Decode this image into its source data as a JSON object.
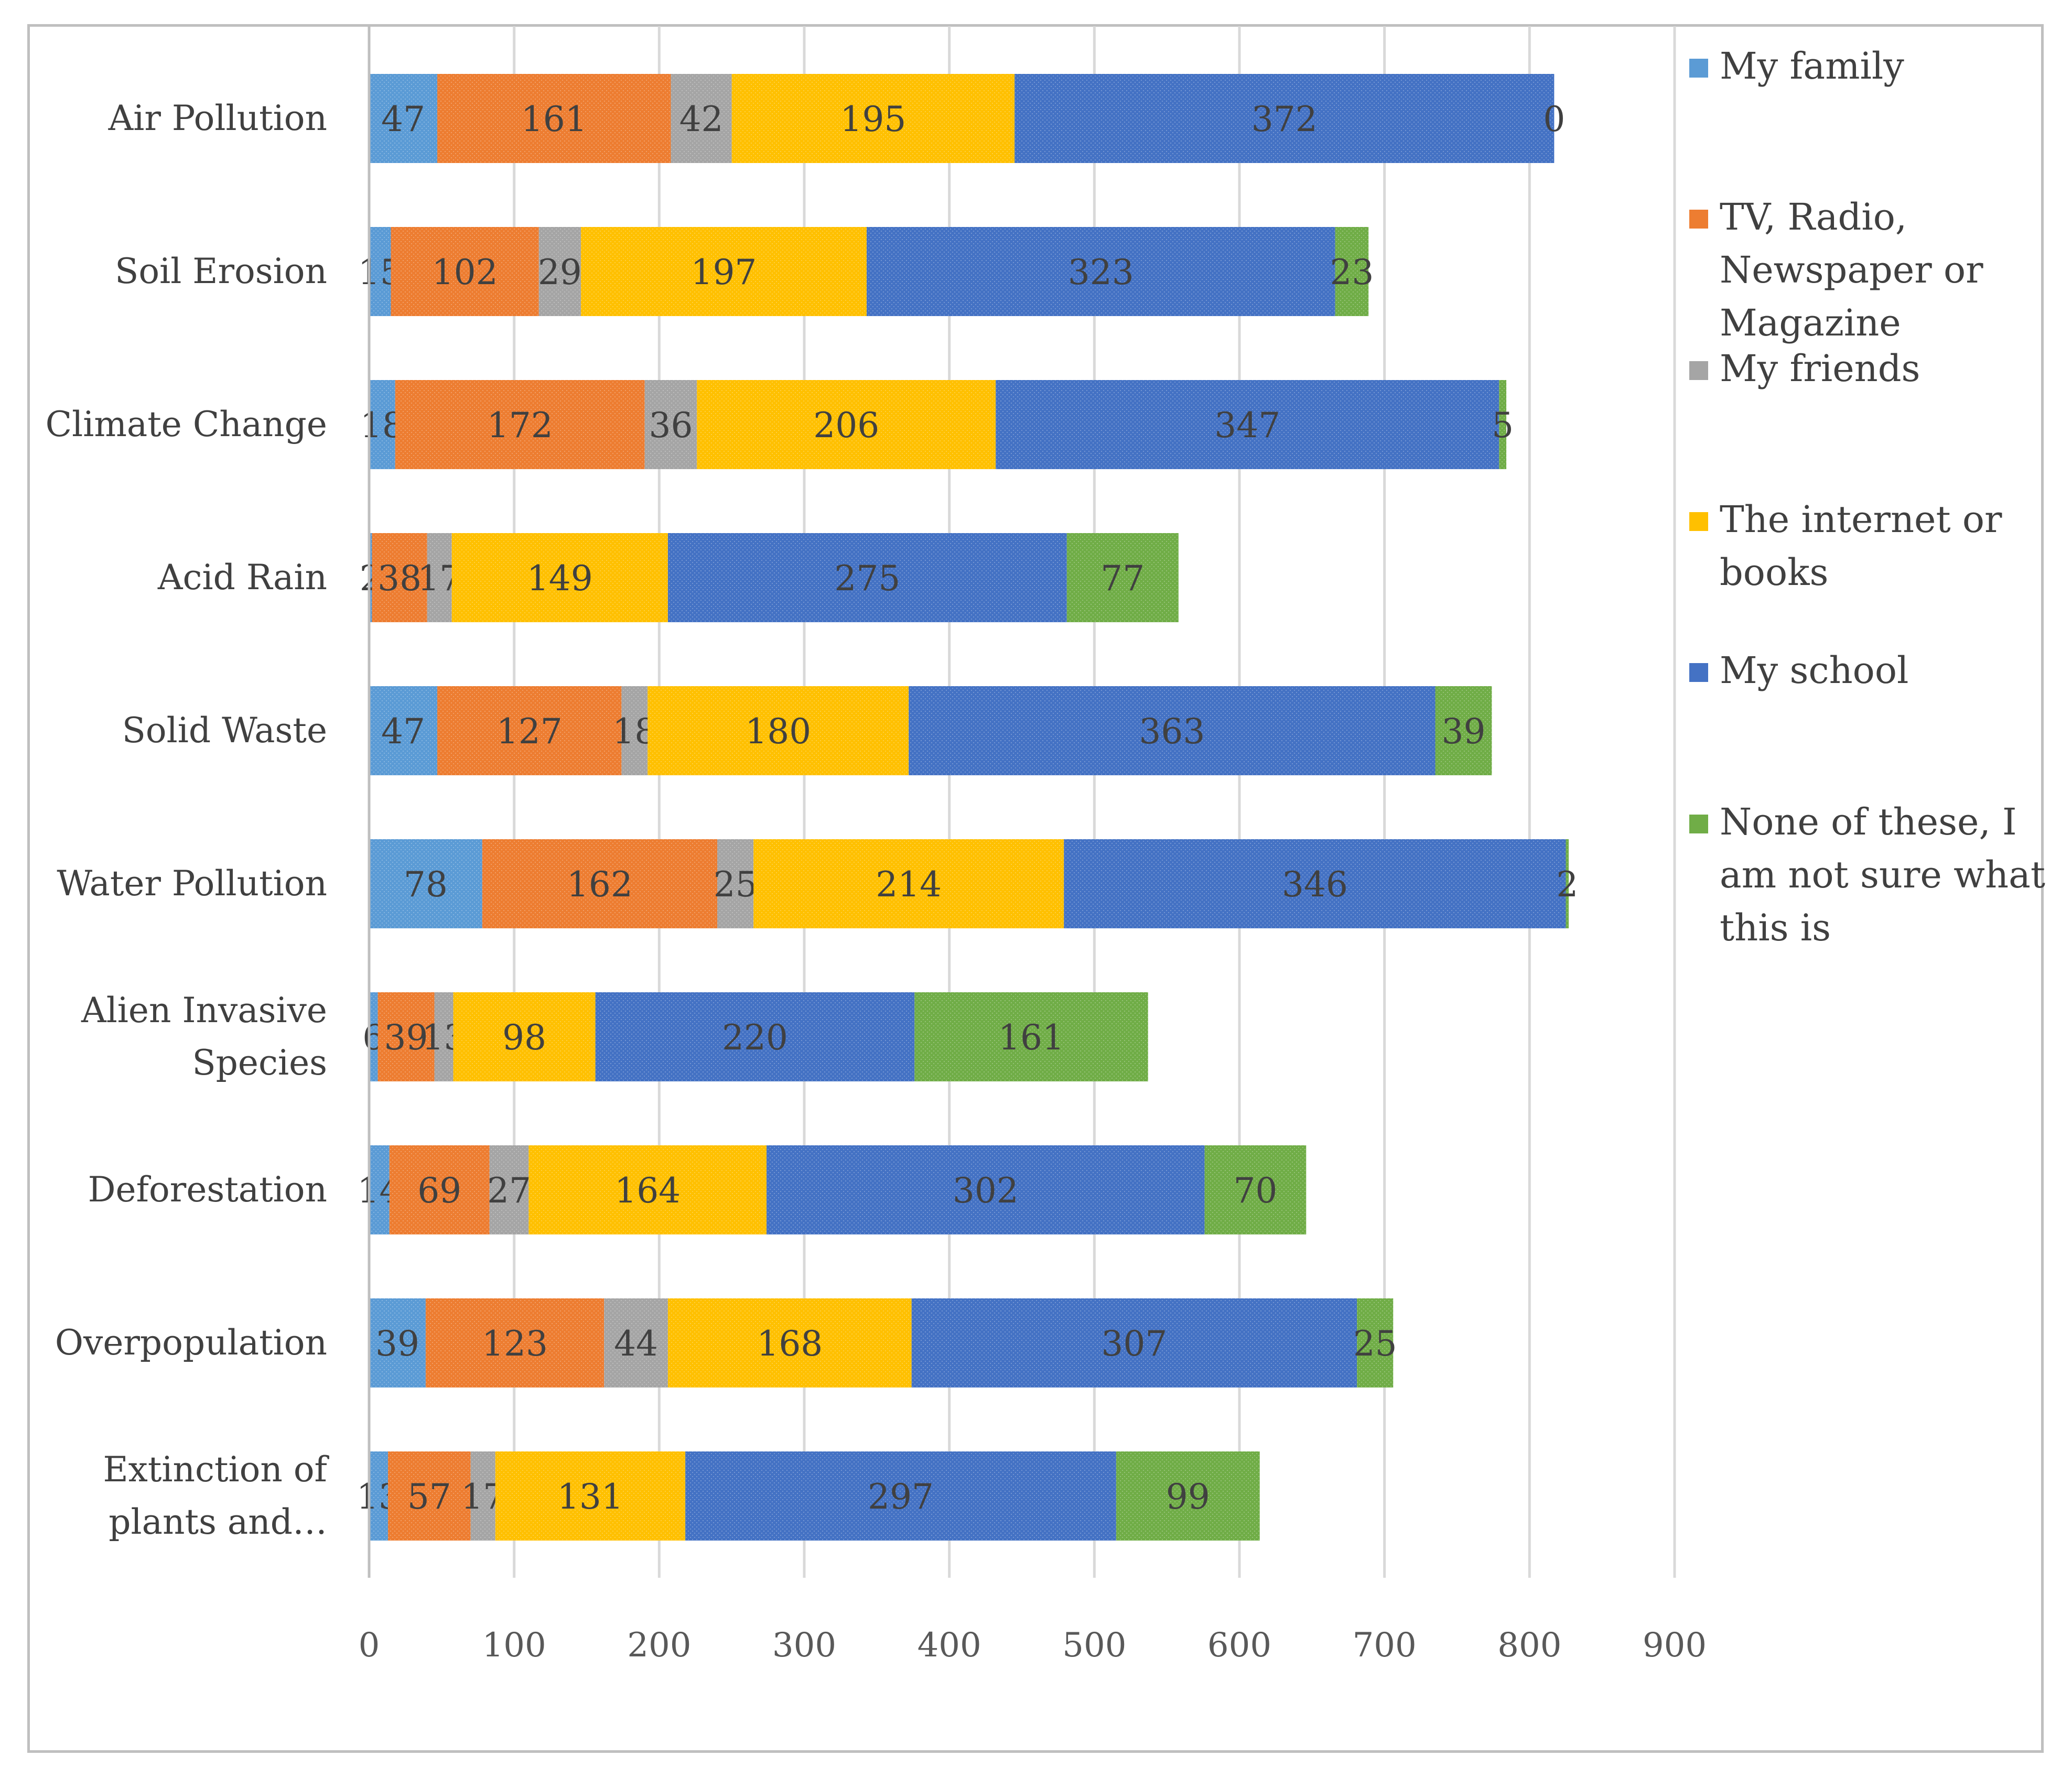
{
  "chart_data": {
    "type": "bar",
    "orientation": "horizontal",
    "stacked": true,
    "title": "",
    "xlabel": "",
    "ylabel": "",
    "xlim": [
      0,
      900
    ],
    "xticks": [
      0,
      100,
      200,
      300,
      400,
      500,
      600,
      700,
      800,
      900
    ],
    "grid": true,
    "legend_position": "right",
    "categories": [
      [
        "Air Pollution"
      ],
      [
        "Soil Erosion"
      ],
      [
        "Climate Change"
      ],
      [
        "Acid Rain"
      ],
      [
        "Solid Waste"
      ],
      [
        "Water Pollution"
      ],
      [
        "Alien Invasive",
        "Species"
      ],
      [
        "Deforestation"
      ],
      [
        "Overpopulation"
      ],
      [
        "Extinction of",
        "plants and…"
      ]
    ],
    "series": [
      {
        "name": [
          "My family"
        ],
        "color": "#5b9bd5",
        "values": [
          47,
          15,
          18,
          2,
          47,
          78,
          6,
          14,
          39,
          13
        ]
      },
      {
        "name": [
          "TV, Radio,",
          "Newspaper or",
          "Magazine"
        ],
        "color": "#ed7d31",
        "values": [
          161,
          102,
          172,
          38,
          127,
          162,
          39,
          69,
          123,
          57
        ]
      },
      {
        "name": [
          "My friends"
        ],
        "color": "#a5a5a5",
        "values": [
          42,
          29,
          36,
          17,
          18,
          25,
          13,
          27,
          44,
          17
        ]
      },
      {
        "name": [
          "The internet or",
          "books"
        ],
        "color": "#ffc000",
        "values": [
          195,
          197,
          206,
          149,
          180,
          214,
          98,
          164,
          168,
          131
        ]
      },
      {
        "name": [
          "My school"
        ],
        "color": "#4472c4",
        "values": [
          372,
          323,
          347,
          275,
          363,
          346,
          220,
          302,
          307,
          297
        ]
      },
      {
        "name": [
          "None of these, I",
          "am not sure what",
          "this is"
        ],
        "color": "#70ad47",
        "values": [
          0,
          23,
          5,
          77,
          39,
          2,
          161,
          70,
          25,
          99
        ]
      }
    ]
  }
}
